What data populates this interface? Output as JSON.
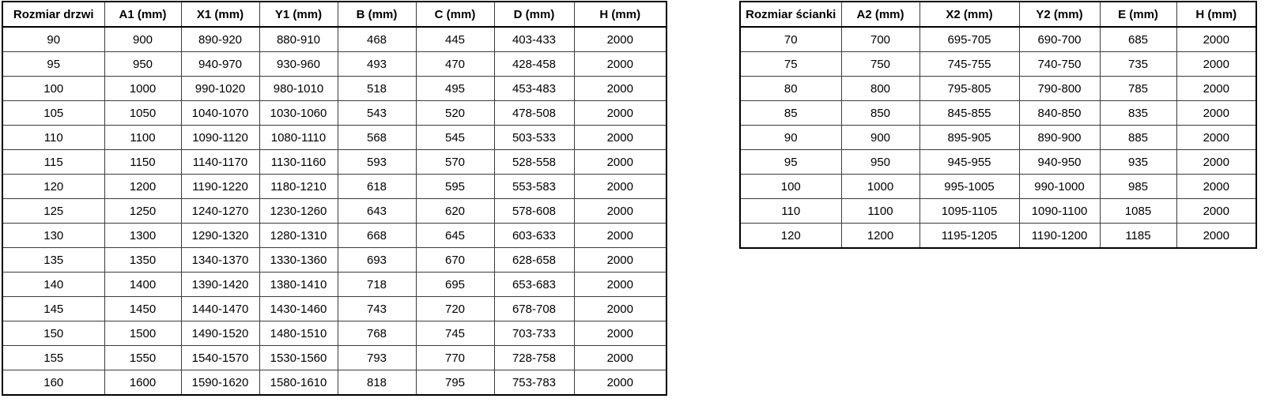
{
  "colors": {
    "background": "#ffffff",
    "border": "#000000",
    "text": "#000000"
  },
  "door_table": {
    "headers": [
      "Rozmiar drzwi",
      "A1 (mm)",
      "X1 (mm)",
      "Y1 (mm)",
      "B (mm)",
      "C (mm)",
      "D (mm)",
      "H (mm)"
    ],
    "rows": [
      [
        "90",
        "900",
        "890-920",
        "880-910",
        "468",
        "445",
        "403-433",
        "2000"
      ],
      [
        "95",
        "950",
        "940-970",
        "930-960",
        "493",
        "470",
        "428-458",
        "2000"
      ],
      [
        "100",
        "1000",
        "990-1020",
        "980-1010",
        "518",
        "495",
        "453-483",
        "2000"
      ],
      [
        "105",
        "1050",
        "1040-1070",
        "1030-1060",
        "543",
        "520",
        "478-508",
        "2000"
      ],
      [
        "110",
        "1100",
        "1090-1120",
        "1080-1110",
        "568",
        "545",
        "503-533",
        "2000"
      ],
      [
        "115",
        "1150",
        "1140-1170",
        "1130-1160",
        "593",
        "570",
        "528-558",
        "2000"
      ],
      [
        "120",
        "1200",
        "1190-1220",
        "1180-1210",
        "618",
        "595",
        "553-583",
        "2000"
      ],
      [
        "125",
        "1250",
        "1240-1270",
        "1230-1260",
        "643",
        "620",
        "578-608",
        "2000"
      ],
      [
        "130",
        "1300",
        "1290-1320",
        "1280-1310",
        "668",
        "645",
        "603-633",
        "2000"
      ],
      [
        "135",
        "1350",
        "1340-1370",
        "1330-1360",
        "693",
        "670",
        "628-658",
        "2000"
      ],
      [
        "140",
        "1400",
        "1390-1420",
        "1380-1410",
        "718",
        "695",
        "653-683",
        "2000"
      ],
      [
        "145",
        "1450",
        "1440-1470",
        "1430-1460",
        "743",
        "720",
        "678-708",
        "2000"
      ],
      [
        "150",
        "1500",
        "1490-1520",
        "1480-1510",
        "768",
        "745",
        "703-733",
        "2000"
      ],
      [
        "155",
        "1550",
        "1540-1570",
        "1530-1560",
        "793",
        "770",
        "728-758",
        "2000"
      ],
      [
        "160",
        "1600",
        "1590-1620",
        "1580-1610",
        "818",
        "795",
        "753-783",
        "2000"
      ]
    ]
  },
  "panel_table": {
    "headers": [
      "Rozmiar ścianki",
      "A2 (mm)",
      "X2 (mm)",
      "Y2 (mm)",
      "E (mm)",
      "H (mm)"
    ],
    "rows": [
      [
        "70",
        "700",
        "695-705",
        "690-700",
        "685",
        "2000"
      ],
      [
        "75",
        "750",
        "745-755",
        "740-750",
        "735",
        "2000"
      ],
      [
        "80",
        "800",
        "795-805",
        "790-800",
        "785",
        "2000"
      ],
      [
        "85",
        "850",
        "845-855",
        "840-850",
        "835",
        "2000"
      ],
      [
        "90",
        "900",
        "895-905",
        "890-900",
        "885",
        "2000"
      ],
      [
        "95",
        "950",
        "945-955",
        "940-950",
        "935",
        "2000"
      ],
      [
        "100",
        "1000",
        "995-1005",
        "990-1000",
        "985",
        "2000"
      ],
      [
        "110",
        "1100",
        "1095-1105",
        "1090-1100",
        "1085",
        "2000"
      ],
      [
        "120",
        "1200",
        "1195-1205",
        "1190-1200",
        "1185",
        "2000"
      ]
    ]
  }
}
